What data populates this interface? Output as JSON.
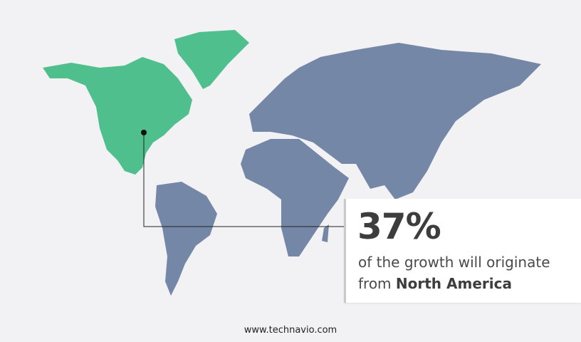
{
  "colors": {
    "highlight": "#4fc08d",
    "land": "#7587a6",
    "background": "#f2f2f4"
  },
  "highlighted_region": "North America",
  "callout": {
    "percentage": "37%",
    "line1": "of the growth will originate",
    "line2_prefix": "from",
    "region": "North America"
  },
  "footer": {
    "url": "www.technavio.com"
  }
}
